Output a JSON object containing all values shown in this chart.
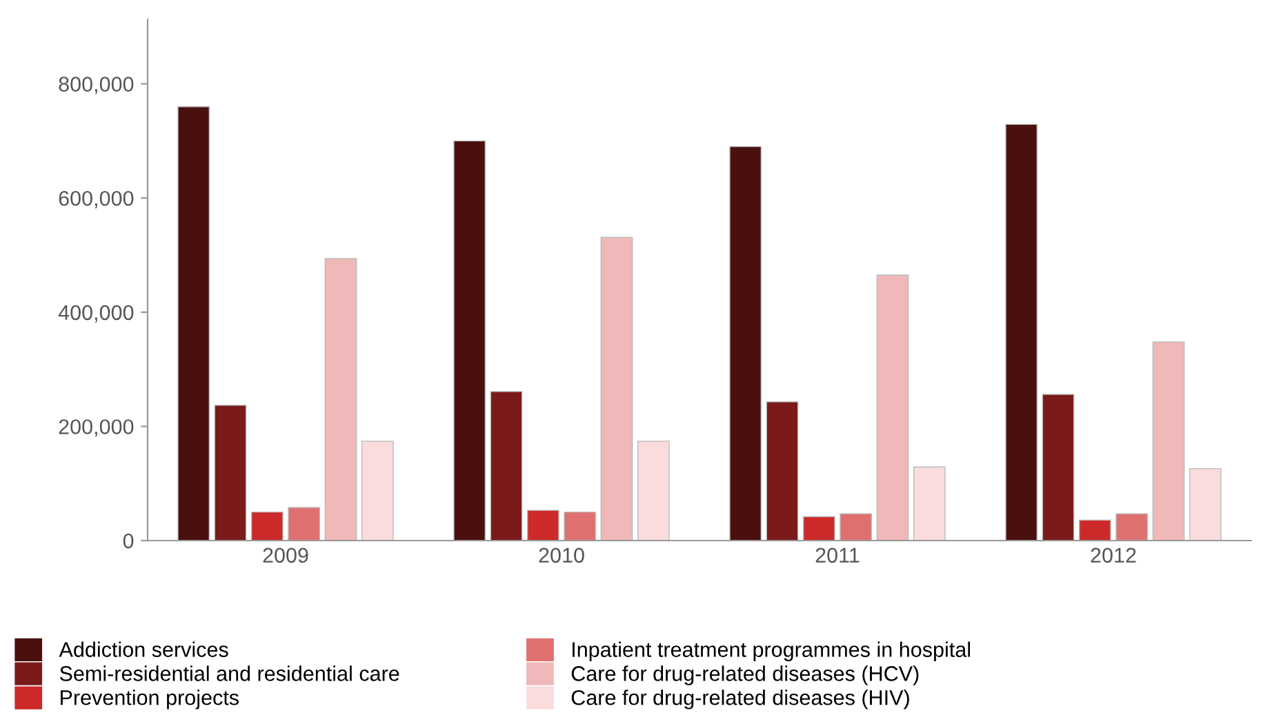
{
  "chart_data": {
    "type": "bar",
    "categories": [
      "2009",
      "2010",
      "2011",
      "2012"
    ],
    "series": [
      {
        "name": "Addiction services",
        "color": "#4a1010",
        "values": [
          760000,
          700000,
          690000,
          729000
        ]
      },
      {
        "name": "Semi-residential and residential care",
        "color": "#7a1a1a",
        "values": [
          237000,
          261000,
          243000,
          256000
        ]
      },
      {
        "name": "Prevention projects",
        "color": "#cc2a2a",
        "values": [
          50000,
          53000,
          42000,
          36000
        ]
      },
      {
        "name": "Inpatient treatment programmes in hospital",
        "color": "#e07070",
        "values": [
          58000,
          50000,
          47000,
          47000
        ]
      },
      {
        "name": "Care for drug-related diseases (HCV)",
        "color": "#f0b8b8",
        "values": [
          494000,
          531000,
          465000,
          348000
        ]
      },
      {
        "name": "Care for drug-related diseases (HIV)",
        "color": "#fadcdc",
        "values": [
          174000,
          174000,
          129000,
          126000
        ]
      }
    ],
    "ylim": [
      0,
      913000
    ],
    "yticks": [
      {
        "value": 0,
        "label": "0"
      },
      {
        "value": 200000,
        "label": "200,000"
      },
      {
        "value": 400000,
        "label": "400,000"
      },
      {
        "value": 600000,
        "label": "600,000"
      },
      {
        "value": 800000,
        "label": "800,000"
      }
    ],
    "grid": false,
    "legend": "bottom"
  }
}
